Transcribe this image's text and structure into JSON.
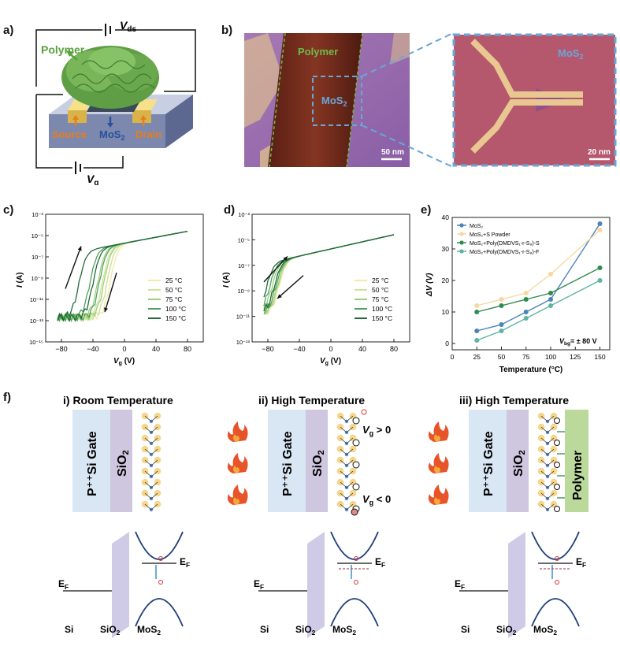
{
  "panels": {
    "a": {
      "label": "a)",
      "vds": "V",
      "vds_sub": "ds",
      "vg": "V",
      "vg_sub": "g",
      "polymer": "Polymer",
      "source": "Source",
      "mos2": "MoS",
      "mos2_sub": "2",
      "drain": "Drain"
    },
    "b": {
      "label": "b)",
      "polymer": "Polymer",
      "mos2": "MoS",
      "mos2_sub": "2",
      "scale1": "50 nm",
      "scale2": "20 nm"
    },
    "c": {
      "label": "c)"
    },
    "d": {
      "label": "d)"
    },
    "e": {
      "label": "e)"
    },
    "f": {
      "label": "f)",
      "col1_title": "i) Room Temperature",
      "col2_title": "ii) High Temperature",
      "col3_title": "iii) High Temperature",
      "gate": "P⁺⁺Si Gate",
      "sio2": "SiO",
      "sio2_sub": "2",
      "polymer": "Polymer",
      "vg_pos": "V",
      "vg_pos_rest": " > 0",
      "vg_neg": "V",
      "vg_neg_rest": " < 0",
      "vg_sub": "g",
      "ef": "E",
      "ef_sub": "F",
      "band_si": "Si",
      "band_sio2": "SiO",
      "band_mos2": "MoS",
      "sub2": "2"
    }
  },
  "chart_data": [
    {
      "type": "line",
      "panel": "c",
      "title": "",
      "xlabel": "V",
      "xlabel_sub": "g",
      "xlabel_unit": " (V)",
      "ylabel": "I",
      "ylabel_unit": " (A)",
      "xlim": [
        -100,
        100
      ],
      "ylim_log10": [
        -15,
        -3
      ],
      "xticks": [
        -80,
        -40,
        0,
        40,
        80
      ],
      "xtick_labels": [
        "−80",
        "−40",
        "0",
        "40",
        "80"
      ],
      "yticks_log10": [
        -15,
        -13,
        -11,
        -9,
        -7,
        -5,
        -3
      ],
      "ytick_labels": [
        "10⁻¹⁵",
        "10⁻¹³",
        "10⁻¹¹",
        "10⁻⁹",
        "10⁻⁷",
        "10⁻⁵",
        "10⁻³"
      ],
      "series": [
        {
          "name": "25 °C",
          "color": "#f2e9a8",
          "vth_fwd": -22,
          "vth_bwd": -18
        },
        {
          "name": "50 °C",
          "color": "#cfe29a",
          "vth_fwd": -28,
          "vth_bwd": -22
        },
        {
          "name": "75 °C",
          "color": "#9ccf7c",
          "vth_fwd": -34,
          "vth_bwd": -26
        },
        {
          "name": "100 °C",
          "color": "#4fa35a",
          "vth_fwd": -44,
          "vth_bwd": -32
        },
        {
          "name": "150 °C",
          "color": "#1f6a3b",
          "vth_fwd": -58,
          "vth_bwd": -40
        }
      ]
    },
    {
      "type": "line",
      "panel": "d",
      "title": "",
      "xlabel": "V",
      "xlabel_sub": "g",
      "xlabel_unit": " (V)",
      "ylabel": "I",
      "ylabel_unit": " (A)",
      "xlim": [
        -100,
        100
      ],
      "ylim_log10": [
        -13,
        -3
      ],
      "xticks": [
        -80,
        -40,
        0,
        40,
        80
      ],
      "xtick_labels": [
        "−80",
        "−40",
        "0",
        "40",
        "80"
      ],
      "yticks_log10": [
        -13,
        -11,
        -9,
        -7,
        -5,
        -3
      ],
      "ytick_labels": [
        "10⁻¹³",
        "10⁻¹¹",
        "10⁻⁹",
        "10⁻⁷",
        "10⁻⁵",
        "10⁻³"
      ],
      "series": [
        {
          "name": "25 °C",
          "color": "#f2e9a8",
          "vth_fwd": -70,
          "vth_bwd": -66
        },
        {
          "name": "50 °C",
          "color": "#cfe29a",
          "vth_fwd": -72,
          "vth_bwd": -67
        },
        {
          "name": "75 °C",
          "color": "#9ccf7c",
          "vth_fwd": -75,
          "vth_bwd": -68
        },
        {
          "name": "100 °C",
          "color": "#4fa35a",
          "vth_fwd": -78,
          "vth_bwd": -70
        },
        {
          "name": "150 °C",
          "color": "#1f6a3b",
          "vth_fwd": -82,
          "vth_bwd": -72
        }
      ]
    },
    {
      "type": "line",
      "panel": "e",
      "title": "",
      "xlabel": "Temperature (°C)",
      "ylabel": "ΔV (V)",
      "xlim": [
        0,
        160
      ],
      "ylim": [
        -2,
        40
      ],
      "xticks": [
        0,
        25,
        50,
        75,
        100,
        125,
        150
      ],
      "yticks": [
        0,
        10,
        20,
        30,
        40
      ],
      "x": [
        25,
        50,
        75,
        100,
        150
      ],
      "annotation": "V",
      "annotation_sub": "bg",
      "annotation_rest": "= ± 80 V",
      "series": [
        {
          "name": "MoS₂",
          "color": "#4a84b8",
          "values": [
            4,
            6,
            10,
            14,
            38
          ]
        },
        {
          "name": "MoS₂+S Powder",
          "color": "#f5d9a0",
          "values": [
            12,
            14,
            16,
            22,
            36
          ]
        },
        {
          "name": "MoS₂+Poly(DMDVS₁-r-S₈)-S",
          "color": "#2e8b4f",
          "values": [
            10,
            12,
            14,
            16,
            24
          ]
        },
        {
          "name": "MoS₂+Poly(DMDVS₁-r-S₈)-F",
          "color": "#5fb3a4",
          "values": [
            1,
            4,
            8,
            12,
            20
          ]
        }
      ]
    }
  ]
}
